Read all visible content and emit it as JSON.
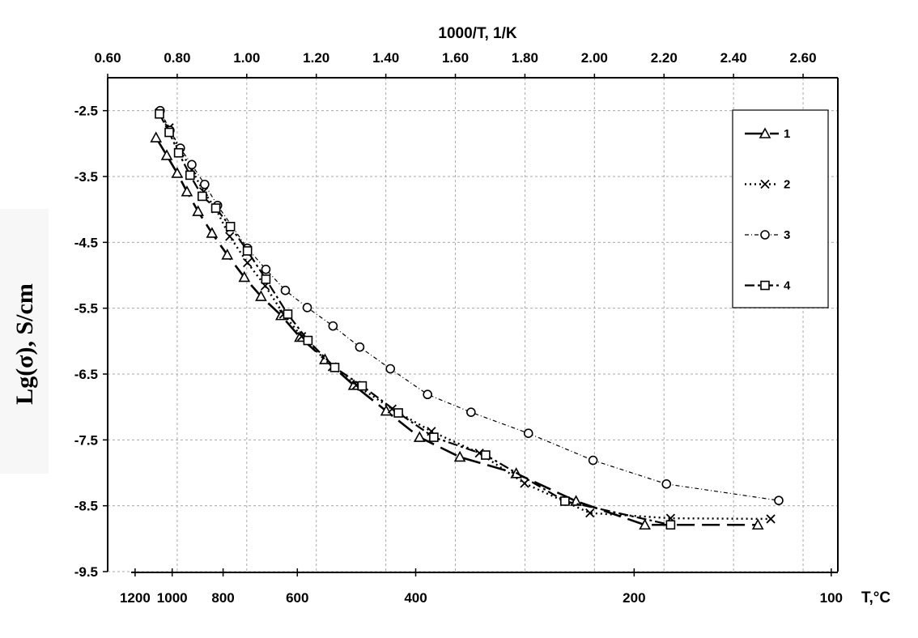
{
  "chart_data": {
    "type": "line",
    "title": "",
    "xlabel_top": "1000/T, 1/K",
    "xlabel_bottom": "T,°C",
    "ylabel": "Lg(σ), S/cm",
    "xlim": [
      0.6,
      2.7
    ],
    "ylim": [
      -9.5,
      -2.0
    ],
    "grid": true,
    "legend_position": "top-right",
    "x_ticks_top": [
      "0.60",
      "0.80",
      "1.00",
      "1.20",
      "1.40",
      "1.60",
      "1.80",
      "2.00",
      "2.20",
      "2.40",
      "2.60"
    ],
    "x_ticks_bottom_celsius": [
      "1200",
      "1000",
      "800",
      "600",
      "400",
      "200",
      "100"
    ],
    "y_ticks": [
      "-2.5",
      "-3.5",
      "-4.5",
      "-5.5",
      "-6.5",
      "-7.5",
      "-8.5",
      "-9.5"
    ],
    "series": [
      {
        "name": "1",
        "marker": "triangle",
        "line": "long-dash",
        "x": [
          0.739,
          0.77,
          0.8,
          0.828,
          0.86,
          0.9,
          0.944,
          0.993,
          1.041,
          1.099,
          1.153,
          1.225,
          1.308,
          1.401,
          1.497,
          1.613,
          1.775,
          1.947,
          2.145,
          2.47
        ],
        "y": [
          -2.91,
          -3.18,
          -3.45,
          -3.73,
          -4.03,
          -4.36,
          -4.69,
          -5.03,
          -5.32,
          -5.61,
          -5.94,
          -6.28,
          -6.67,
          -7.06,
          -7.46,
          -7.76,
          -8.01,
          -8.43,
          -8.79,
          -8.79
        ]
      },
      {
        "name": "2",
        "marker": "cross",
        "line": "dotted",
        "x": [
          0.749,
          0.777,
          0.807,
          0.842,
          0.876,
          0.911,
          0.951,
          1.002,
          1.053,
          1.106,
          1.158,
          1.246,
          1.315,
          1.418,
          1.531,
          1.669,
          1.799,
          1.987,
          2.219,
          2.507
        ],
        "y": [
          -2.53,
          -2.76,
          -3.09,
          -3.4,
          -3.73,
          -3.99,
          -4.41,
          -4.81,
          -5.16,
          -5.59,
          -5.93,
          -6.39,
          -6.67,
          -7.03,
          -7.37,
          -7.7,
          -8.16,
          -8.61,
          -8.69,
          -8.7
        ]
      },
      {
        "name": "3",
        "marker": "circle",
        "line": "dash-dot-thin",
        "x": [
          0.751,
          0.779,
          0.809,
          0.842,
          0.879,
          0.916,
          1.002,
          1.055,
          1.111,
          1.174,
          1.248,
          1.325,
          1.413,
          1.52,
          1.645,
          1.81,
          1.996,
          2.207,
          2.53
        ],
        "y": [
          -2.5,
          -2.8,
          -3.07,
          -3.32,
          -3.62,
          -3.94,
          -4.59,
          -4.91,
          -5.23,
          -5.49,
          -5.77,
          -6.09,
          -6.42,
          -6.81,
          -7.08,
          -7.4,
          -7.81,
          -8.17,
          -8.42
        ]
      },
      {
        "name": "4",
        "marker": "square",
        "line": "dash-dot",
        "x": [
          0.749,
          0.777,
          0.804,
          0.837,
          0.872,
          0.911,
          0.953,
          1.002,
          1.055,
          1.118,
          1.176,
          1.253,
          1.332,
          1.436,
          1.538,
          1.687,
          1.915,
          2.219
        ],
        "y": [
          -2.55,
          -2.83,
          -3.14,
          -3.48,
          -3.8,
          -3.98,
          -4.26,
          -4.63,
          -5.06,
          -5.59,
          -5.99,
          -6.4,
          -6.68,
          -7.09,
          -7.46,
          -7.73,
          -8.43,
          -8.79
        ]
      }
    ],
    "legend": [
      "1",
      "2",
      "3",
      "4"
    ]
  }
}
